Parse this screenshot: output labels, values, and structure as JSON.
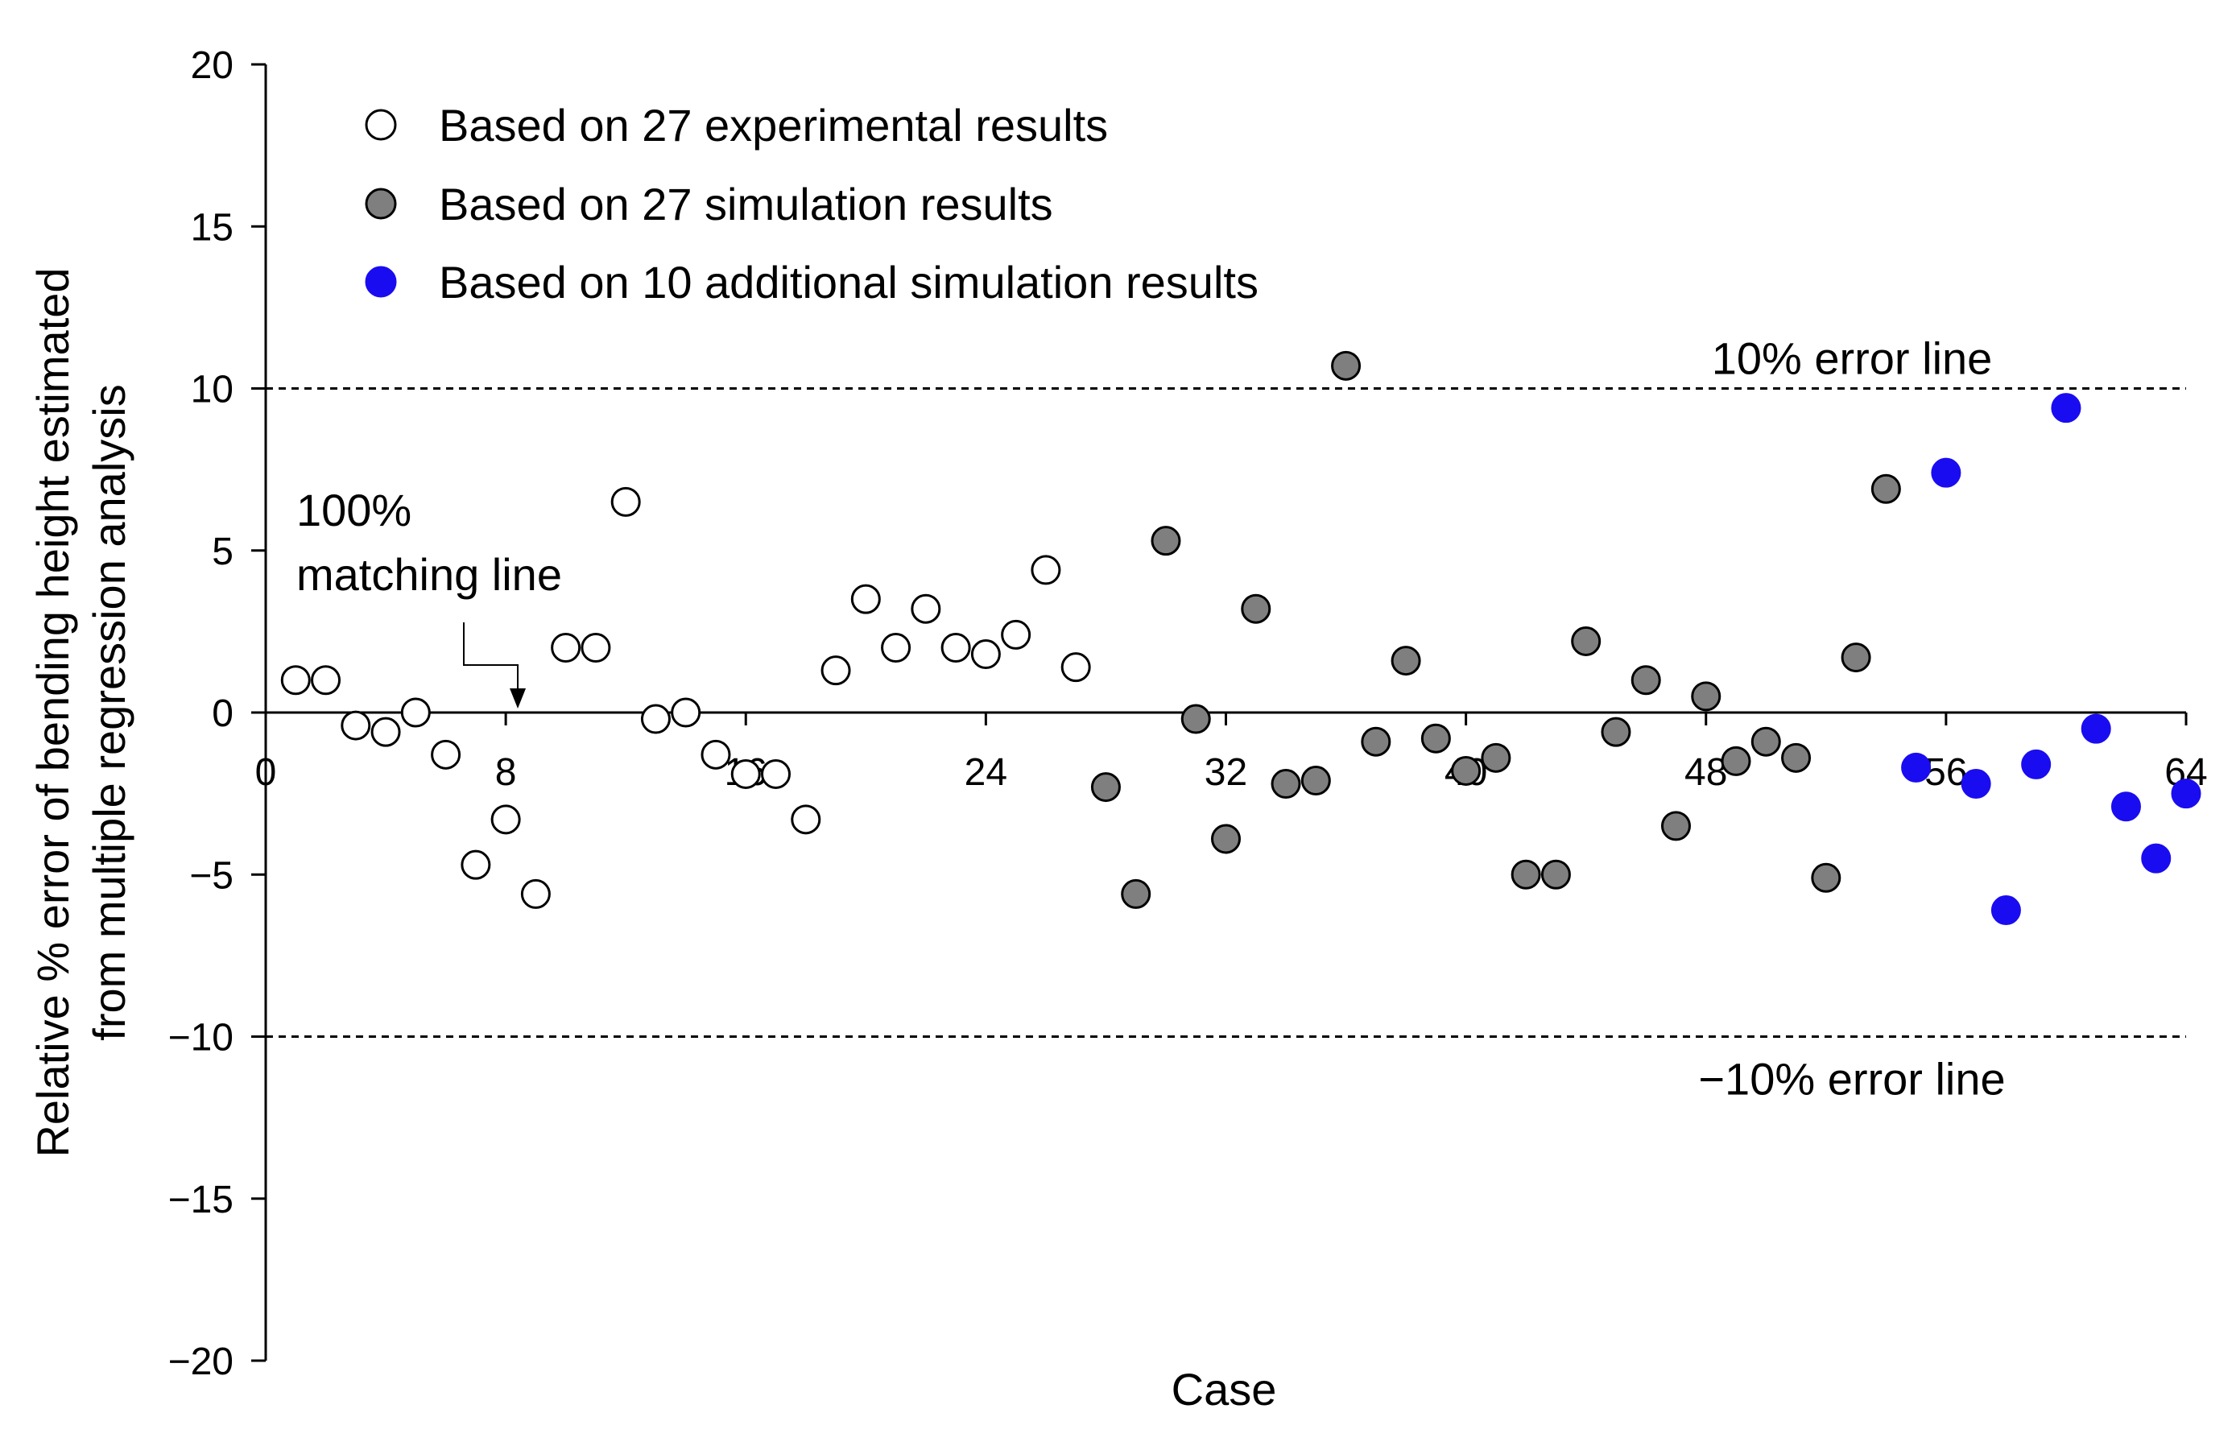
{
  "chart_data": {
    "type": "scatter",
    "xlabel": "Case",
    "ylabel_lines": [
      "Relative % error of bending height estimated",
      "from multiple regression analysis"
    ],
    "xlim": [
      0,
      64
    ],
    "ylim": [
      -20,
      20
    ],
    "x_ticks": [
      0,
      8,
      16,
      24,
      32,
      40,
      48,
      56,
      64
    ],
    "x_tick_labels": [
      "0",
      "8",
      "16",
      "24",
      "32",
      "40",
      "48",
      "56",
      "64"
    ],
    "y_ticks": [
      20,
      15,
      10,
      5,
      0,
      -5,
      -10,
      -15,
      -20
    ],
    "y_tick_labels": [
      "20",
      "15",
      "10",
      "5",
      "0",
      "−5",
      "−10",
      "−15",
      "−20"
    ],
    "grid": false,
    "legend_position": "top-left",
    "reference_lines": [
      {
        "y": 10,
        "label": "10% error line",
        "style": "dashed"
      },
      {
        "y": -10,
        "label": "−10% error line",
        "style": "dashed"
      },
      {
        "y": 0,
        "style": "solid"
      }
    ],
    "annotations": [
      {
        "lines": [
          "100%",
          "matching line"
        ],
        "points_to_x": 8.4,
        "points_to_y": 0
      }
    ],
    "series": [
      {
        "name": "Based on 27 experimental results",
        "marker": "open-circle",
        "color": "#ffffff",
        "edge": "#000000",
        "x": [
          1,
          2,
          3,
          4,
          5,
          6,
          7,
          8,
          9,
          10,
          11,
          12,
          13,
          14,
          15,
          16,
          17,
          18,
          19,
          20,
          21,
          22,
          23,
          24,
          25,
          26,
          27
        ],
        "y": [
          1.0,
          1.0,
          -0.4,
          -0.6,
          0.0,
          -1.3,
          -4.7,
          -3.3,
          -5.6,
          2.0,
          2.0,
          6.5,
          -0.2,
          0.0,
          -1.3,
          -1.9,
          -1.9,
          -3.3,
          1.3,
          3.5,
          2.0,
          3.2,
          2.0,
          1.8,
          2.4,
          4.4,
          1.4
        ]
      },
      {
        "name": "Based on 27 simulation results",
        "marker": "filled-circle",
        "color": "#7f7f7f",
        "edge": "#000000",
        "x": [
          28,
          29,
          30,
          31,
          32,
          33,
          34,
          35,
          36,
          37,
          38,
          39,
          40,
          41,
          42,
          43,
          44,
          45,
          46,
          47,
          48,
          49,
          50,
          51,
          52,
          53,
          54
        ],
        "y": [
          -2.3,
          -5.6,
          5.3,
          -0.2,
          -3.9,
          3.2,
          -2.2,
          -2.1,
          10.7,
          -0.9,
          1.6,
          -0.8,
          -1.8,
          -1.4,
          -5.0,
          -5.0,
          2.2,
          -0.6,
          1.0,
          -3.5,
          0.5,
          -1.5,
          -0.9,
          -1.4,
          -5.1,
          1.7,
          6.9
        ]
      },
      {
        "name": "Based on 10 additional simulation results",
        "marker": "filled-circle",
        "color": "#1a0cf0",
        "edge": "#1a0cf0",
        "x": [
          55,
          56,
          57,
          58,
          59,
          60,
          61,
          62,
          63,
          64
        ],
        "y": [
          -1.7,
          7.4,
          -2.2,
          -6.1,
          -1.6,
          9.4,
          -0.5,
          -2.9,
          -4.5,
          -2.5
        ]
      }
    ]
  }
}
